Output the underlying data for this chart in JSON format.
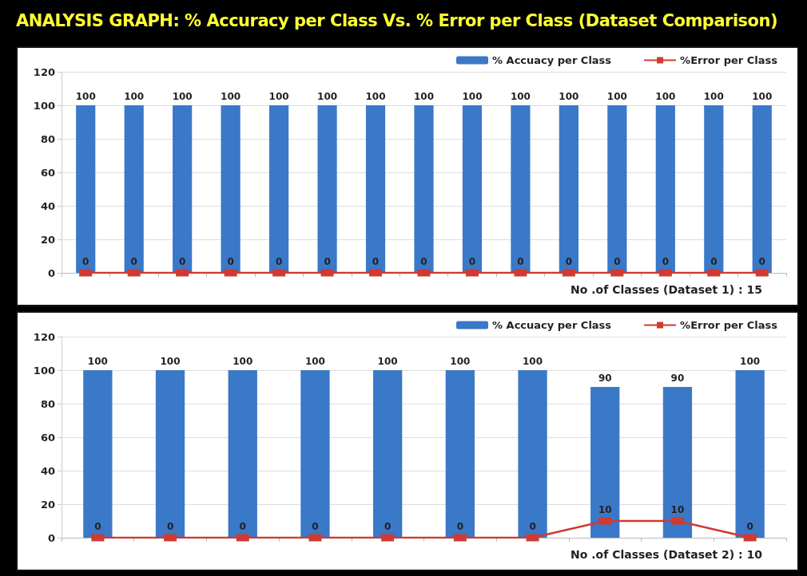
{
  "chart_data": [
    {
      "type": "bar",
      "title": "ANALYSIS GRAPH: % Accuracy per Class Vs. % Error per Class (Dataset Comparison)",
      "xlabel": "No .of Classes (Dataset 1) : 15",
      "categories": [
        null,
        null,
        null,
        null,
        null,
        null,
        null,
        null,
        null,
        null,
        null,
        null,
        null,
        null,
        null
      ],
      "series": [
        {
          "name": "% Accuacy per Class",
          "color": "#3a78c8",
          "values": [
            100,
            100,
            100,
            100,
            100,
            100,
            100,
            100,
            100,
            100,
            100,
            100,
            100,
            100,
            100
          ]
        },
        {
          "name": "%Error per Class",
          "type": "line",
          "color": "#d03a30",
          "values": [
            0,
            0,
            0,
            0,
            0,
            0,
            0,
            0,
            0,
            0,
            0,
            0,
            0,
            0,
            0
          ]
        }
      ],
      "ylim": [
        0,
        120
      ],
      "yticks": [
        0,
        20,
        40,
        60,
        80,
        100,
        120
      ],
      "grid": "y",
      "legend": "top right",
      "marker": "square",
      "data_labels": true
    },
    {
      "type": "bar",
      "xlabel": "No .of Classes (Dataset 2) : 10",
      "categories": [
        null,
        null,
        null,
        null,
        null,
        null,
        null,
        null,
        null,
        null
      ],
      "series": [
        {
          "name": "% Accuacy per Class",
          "color": "#3a78c8",
          "values": [
            100,
            100,
            100,
            100,
            100,
            100,
            100,
            90,
            90,
            100
          ]
        },
        {
          "name": "%Error per Class",
          "type": "line",
          "color": "#d03a30",
          "values": [
            0,
            0,
            0,
            0,
            0,
            0,
            0,
            10,
            10,
            0
          ]
        }
      ],
      "ylim": [
        0,
        120
      ],
      "yticks": [
        0,
        20,
        40,
        60,
        80,
        100,
        120
      ],
      "grid": "y",
      "legend": "top right",
      "marker": "square",
      "data_labels": true
    }
  ]
}
